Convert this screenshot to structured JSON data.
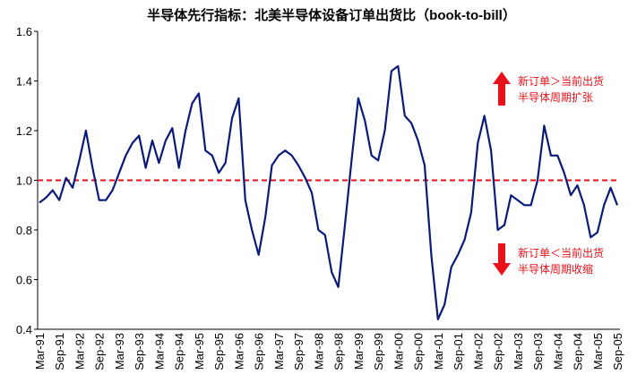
{
  "chart_data": {
    "type": "line",
    "title": "半导体先行指标：北美半导体设备订单出货比（book-to-bill）",
    "categories": [
      "Mar-91",
      null,
      null,
      "Sep-91",
      null,
      null,
      "Mar-92",
      null,
      null,
      "Sep-92",
      null,
      null,
      "Mar-93",
      null,
      null,
      "Sep-93",
      null,
      null,
      "Mar-94",
      null,
      null,
      "Sep-94",
      null,
      null,
      "Mar-95",
      null,
      null,
      "Sep-95",
      null,
      null,
      "Mar-96",
      null,
      null,
      "Sep-96",
      null,
      null,
      "Mar-97",
      null,
      null,
      "Sep-97",
      null,
      null,
      "Mar-98",
      null,
      null,
      "Sep-98",
      null,
      null,
      "Mar-99",
      null,
      null,
      "Sep-99",
      null,
      null,
      "Mar-00",
      null,
      null,
      "Sep-00",
      null,
      null,
      "Mar-01",
      null,
      null,
      "Sep-01",
      null,
      null,
      "Mar-02",
      null,
      null,
      "Sep-02",
      null,
      null,
      "Mar-03",
      null,
      null,
      "Sep-03",
      null,
      null,
      "Mar-04",
      null,
      null,
      "Sep-04",
      null,
      null,
      "Mar-05",
      null,
      null,
      "Sep-05"
    ],
    "series": [
      {
        "color": "#0a1a7a",
        "values": [
          0.91,
          0.93,
          0.96,
          0.92,
          1.01,
          0.97,
          1.08,
          1.2,
          1.05,
          0.92,
          0.92,
          0.96,
          1.03,
          1.1,
          1.15,
          1.18,
          1.05,
          1.16,
          1.07,
          1.16,
          1.21,
          1.05,
          1.2,
          1.31,
          1.35,
          1.12,
          1.1,
          1.03,
          1.07,
          1.25,
          1.33,
          0.92,
          0.8,
          0.7,
          0.85,
          1.06,
          1.1,
          1.12,
          1.1,
          1.06,
          1.01,
          0.95,
          0.8,
          0.78,
          0.63,
          0.57,
          0.82,
          1.08,
          1.33,
          1.24,
          1.1,
          1.08,
          1.2,
          1.44,
          1.46,
          1.26,
          1.23,
          1.16,
          1.06,
          0.7,
          0.44,
          0.5,
          0.65,
          0.7,
          0.76,
          0.87,
          1.15,
          1.26,
          1.12,
          0.8,
          0.82,
          0.94,
          0.92,
          0.9,
          0.9,
          1.0,
          1.22,
          1.1,
          1.1,
          1.03,
          0.94,
          0.98,
          0.9,
          0.77,
          0.79,
          0.9,
          0.97,
          0.9
        ]
      }
    ],
    "ylim": [
      0.4,
      1.6
    ],
    "yticks": [
      0.4,
      0.6,
      0.8,
      {
        "value": 1,
        "label": "1.0"
      },
      1.2,
      1.4,
      1.6
    ],
    "reference_line": {
      "value": 1,
      "color": "#e8101a"
    },
    "annotations": [
      {
        "lines": [
          "新订单＞当前出货",
          "半导体周期扩张"
        ],
        "color": "#e8101a"
      },
      {
        "lines": [
          "新订单＜当前出货",
          "半导体周期收缩"
        ],
        "color": "#e8101a"
      }
    ]
  }
}
